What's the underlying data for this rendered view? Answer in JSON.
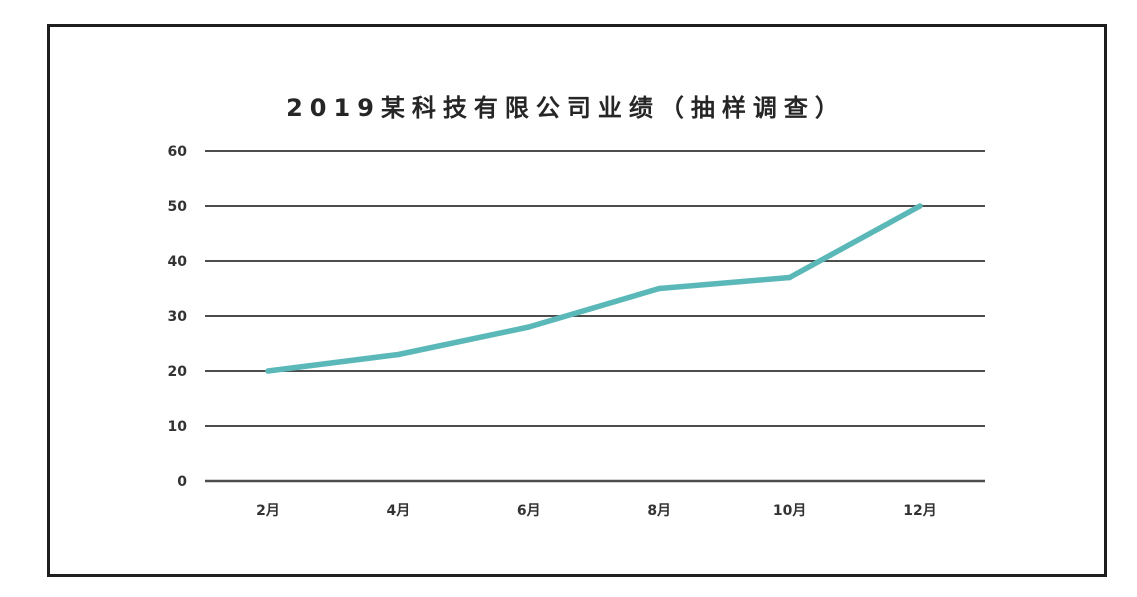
{
  "chart_data": {
    "type": "line",
    "title": "2019某科技有限公司业绩（抽样调查）",
    "categories": [
      "2月",
      "4月",
      "6月",
      "8月",
      "10月",
      "12月"
    ],
    "series": [
      {
        "values": [
          20,
          23,
          28,
          35,
          37,
          50
        ]
      }
    ],
    "ylim": [
      0,
      60
    ],
    "yticks": [
      0,
      10,
      20,
      30,
      40,
      50,
      60
    ],
    "grid": true,
    "legend": "none",
    "colors": {
      "line": "#5bb8b8",
      "grid": "#4d4d4d",
      "frame": "#1e1e1e"
    }
  }
}
